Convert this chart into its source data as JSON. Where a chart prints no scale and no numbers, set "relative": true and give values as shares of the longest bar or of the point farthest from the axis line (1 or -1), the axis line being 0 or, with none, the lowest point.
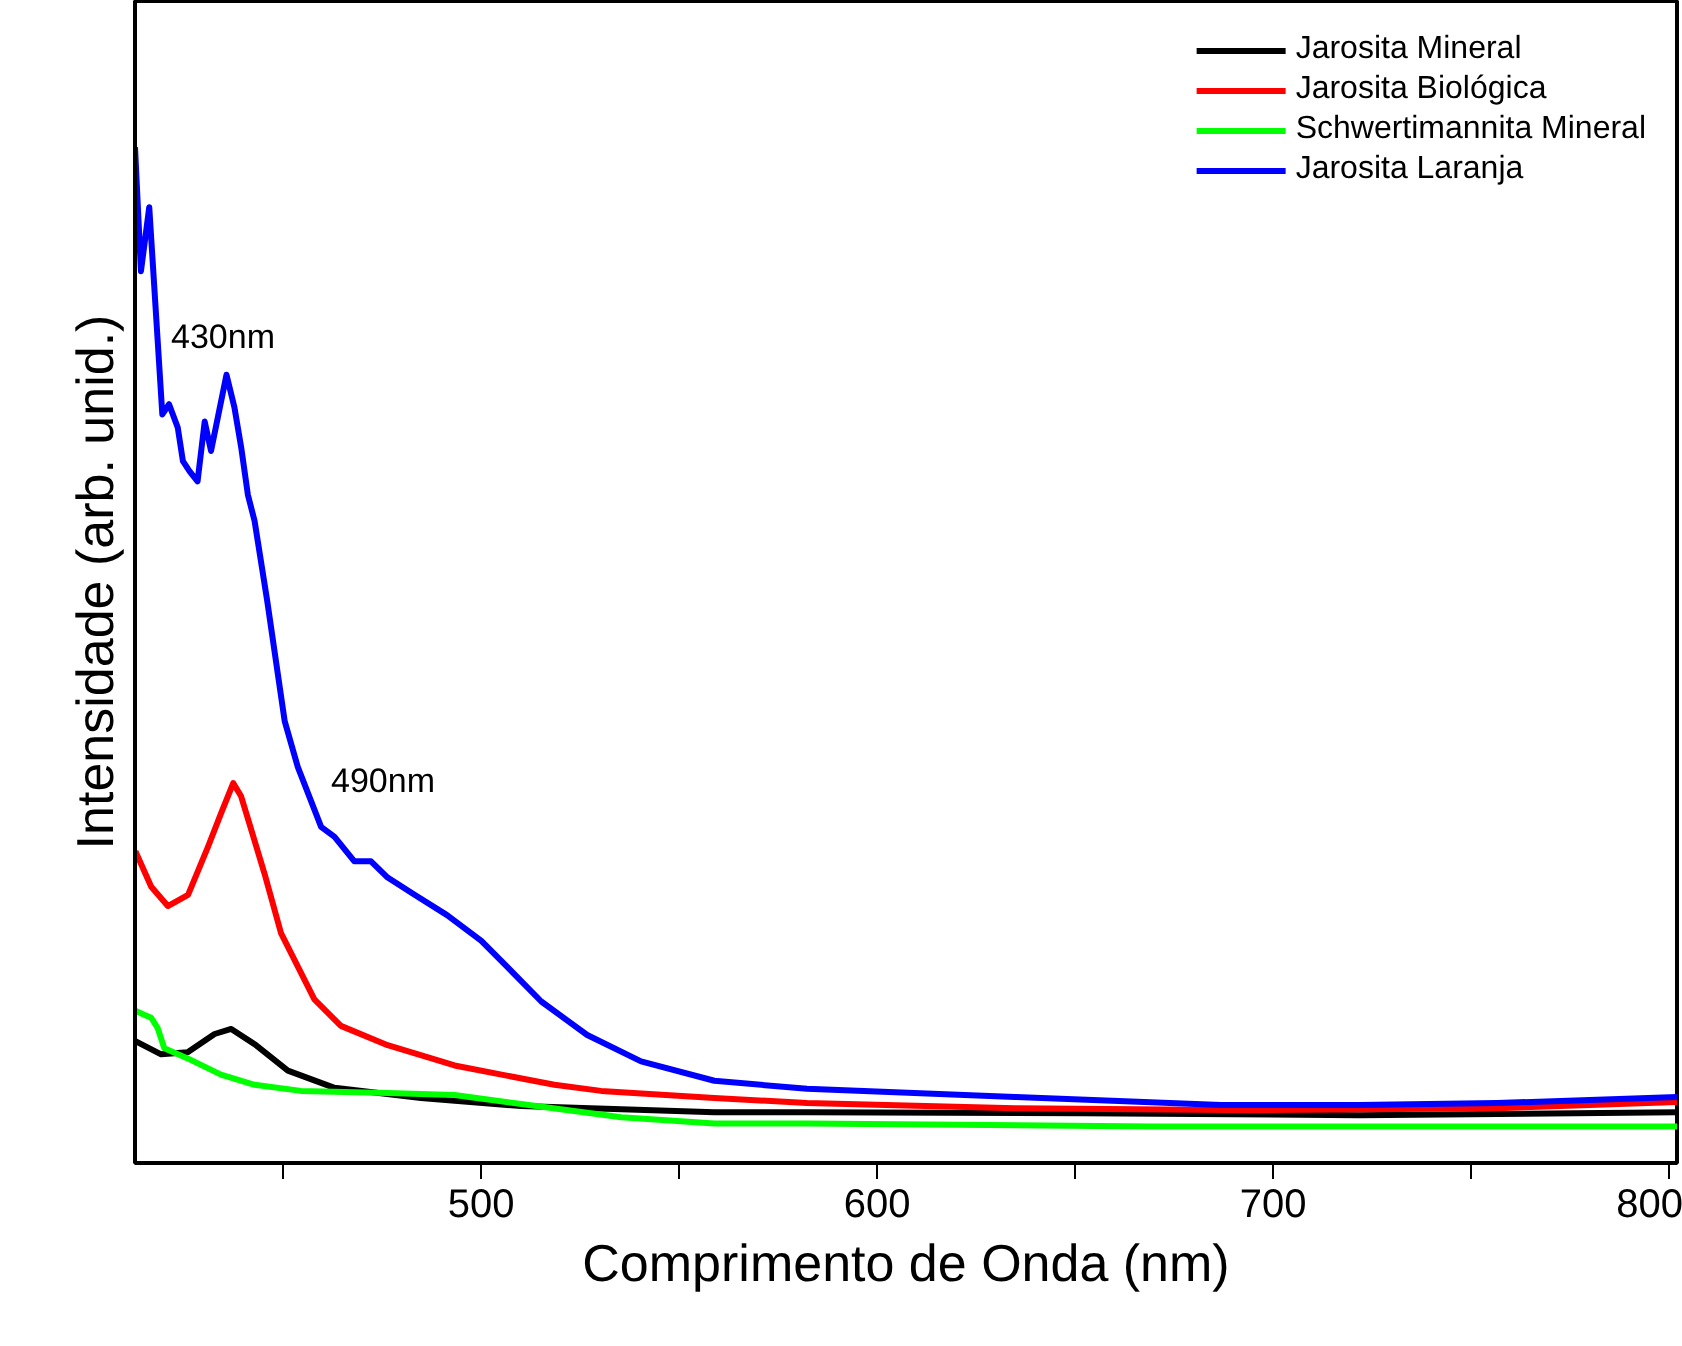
{
  "chart_data": {
    "type": "line",
    "relative": true,
    "xlabel": "Comprimento de Onda (nm)",
    "ylabel": "Intensidade (arb. unid.)",
    "xlim": [
      412.6,
      802
    ],
    "xticks": [
      {
        "value": 450,
        "label": null
      },
      500,
      {
        "value": 550,
        "label": null
      },
      600,
      {
        "value": 650,
        "label": null
      },
      700,
      {
        "value": 750,
        "label": null
      },
      800
    ],
    "tick_labels": "x",
    "legend": "top right",
    "line_style": "solid",
    "marker": "none",
    "annotations": [
      "430nm",
      "490nm"
    ],
    "series": [
      {
        "name": "Jarosita Mineral",
        "color": "#000000",
        "x": [
          412.7,
          419.2,
          425.9,
          432.7,
          436.9,
          442.8,
          451.2,
          463.0,
          484.8,
          510.1,
          558.9,
          582.3,
          652,
          721.7,
          802
        ],
        "values": [
          0.12,
          0.107,
          0.109,
          0.127,
          0.132,
          0.117,
          0.091,
          0.074,
          0.064,
          0.056,
          0.05,
          0.05,
          0.049,
          0.047,
          0.05
        ]
      },
      {
        "name": "Jarosita Biológica",
        "color": "#ff0000",
        "x": [
          412.7,
          416.7,
          420.9,
          426.0,
          431.0,
          434.3,
          437.4,
          439.4,
          445.3,
          449.5,
          457.9,
          464.6,
          476.4,
          493.3,
          518.5,
          530.3,
          558.9,
          582.3,
          634.8,
          695.8,
          756.6,
          802
        ],
        "values": [
          0.307,
          0.272,
          0.253,
          0.264,
          0.311,
          0.344,
          0.374,
          0.361,
          0.285,
          0.226,
          0.161,
          0.135,
          0.116,
          0.096,
          0.077,
          0.071,
          0.064,
          0.059,
          0.054,
          0.052,
          0.054,
          0.06
        ]
      },
      {
        "name": "Schwertimannita Mineral",
        "color": "#00ff00",
        "x": [
          412.7,
          414.9,
          416.7,
          418.3,
          420.0,
          425.9,
          434.3,
          442.8,
          454.5,
          476.4,
          493.3,
          510.1,
          535.4,
          558.9,
          582.3,
          669.7,
          802
        ],
        "values": [
          0.15,
          0.146,
          0.143,
          0.133,
          0.113,
          0.103,
          0.087,
          0.077,
          0.071,
          0.069,
          0.067,
          0.058,
          0.045,
          0.039,
          0.039,
          0.036,
          0.036
        ]
      },
      {
        "name": "Jarosita Laranja",
        "color": "#0000ff",
        "x": [
          412.6,
          414.1,
          416.2,
          419.5,
          421.2,
          423.4,
          424.7,
          426.4,
          428.4,
          430.2,
          431.8,
          435.7,
          437.7,
          439.4,
          441.1,
          442.8,
          446.0,
          450.4,
          453.7,
          459.6,
          463.0,
          468.0,
          472.2,
          476.4,
          483.2,
          491.4,
          500,
          506.6,
          515.2,
          526.8,
          540.4,
          558.9,
          582.3,
          634.8,
          686.9,
          721.7,
          756.6,
          802
        ],
        "values": [
          1.0,
          0.878,
          0.941,
          0.737,
          0.747,
          0.724,
          0.691,
          0.681,
          0.671,
          0.73,
          0.701,
          0.776,
          0.744,
          0.705,
          0.658,
          0.632,
          0.553,
          0.435,
          0.39,
          0.331,
          0.321,
          0.297,
          0.297,
          0.281,
          0.264,
          0.244,
          0.219,
          0.193,
          0.159,
          0.126,
          0.1,
          0.081,
          0.073,
          0.065,
          0.057,
          0.057,
          0.059,
          0.065
        ]
      }
    ]
  }
}
